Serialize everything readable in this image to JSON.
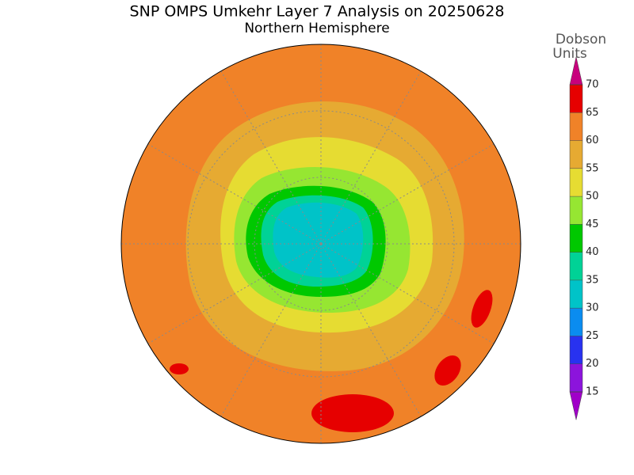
{
  "header": {
    "title": "SNP OMPS Umkehr Layer 7 Analysis on 20250628",
    "subtitle": "Northern Hemisphere"
  },
  "colorbar": {
    "label_lines": [
      "Dobson",
      "Units"
    ],
    "levels": [
      15,
      20,
      25,
      30,
      35,
      40,
      45,
      50,
      55,
      60,
      65,
      70
    ],
    "colors": [
      "#8c14dc",
      "#2832f0",
      "#0a8cf0",
      "#00c3c8",
      "#00d296",
      "#00c800",
      "#96e632",
      "#e6dc32",
      "#e6aa32",
      "#f08228",
      "#e60000"
    ],
    "under_color": "#a000c8",
    "over_color": "#c8007d"
  }
}
